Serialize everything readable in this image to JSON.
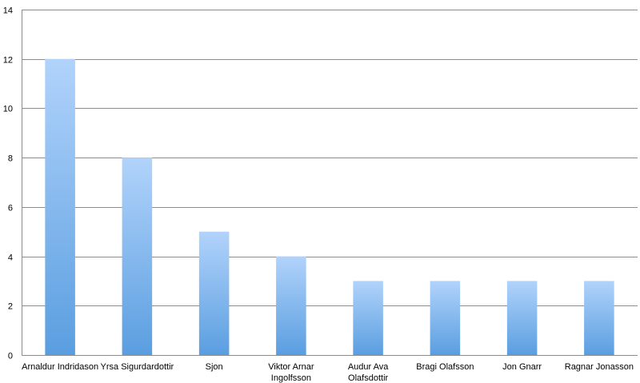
{
  "chart_data": {
    "type": "bar",
    "title": "",
    "xlabel": "",
    "ylabel": "",
    "categories": [
      [
        "Arnaldur Indridason"
      ],
      [
        "Yrsa Sigurdardottir"
      ],
      [
        "Sjon"
      ],
      [
        "Viktor Arnar",
        "Ingolfsson"
      ],
      [
        "Audur Ava",
        "Olafsdottir"
      ],
      [
        "Bragi Olafsson"
      ],
      [
        "Jon Gnarr"
      ],
      [
        "Ragnar Jonasson"
      ]
    ],
    "values": [
      12,
      8,
      5,
      4,
      3,
      3,
      3,
      3
    ],
    "ylim": [
      0,
      14
    ],
    "yticks": [
      "0",
      "2",
      "4",
      "6",
      "8",
      "10",
      "12",
      "14"
    ],
    "grid": true,
    "legend": "none",
    "colors": {
      "bar_top": "#b1d3fb",
      "bar_bottom": "#5a9ee0",
      "grid": "#8c8c8c",
      "axis": "#8c8c8c"
    }
  }
}
